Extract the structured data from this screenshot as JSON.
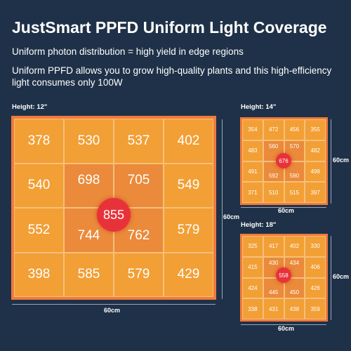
{
  "title": "JustSmart PPFD Uniform Light Coverage",
  "subtitle": "Uniform photon distribution = high yield in edge regions",
  "description": "Uniform PPFD allows you to grow high-quality plants and this high-efficiency light consumes only 100W",
  "colors": {
    "background": "#1f3148",
    "border": "#f07a3c",
    "cell": "#f29f35",
    "center_cell": "#ea8a3a",
    "hotspot": "#e8323a"
  },
  "maps": {
    "h12": {
      "height_label": "Height: 12\"",
      "width_label": "60cm",
      "depth_label": "60cm",
      "center_value": "855",
      "values": [
        "378",
        "530",
        "537",
        "402",
        "540",
        "698",
        "705",
        "549",
        "552",
        "744",
        "762",
        "579",
        "398",
        "585",
        "579",
        "429"
      ]
    },
    "h14": {
      "height_label": "Height: 14\"",
      "width_label": "60cm",
      "depth_label": "60cm",
      "center_value": "676",
      "values": [
        "354",
        "472",
        "456",
        "355",
        "483",
        "560",
        "570",
        "482",
        "491",
        "592",
        "590",
        "499",
        "371",
        "510",
        "515",
        "397"
      ]
    },
    "h18": {
      "height_label": "Height: 18\"",
      "width_label": "60cm",
      "depth_label": "60cm",
      "center_value": "558",
      "values": [
        "325",
        "417",
        "402",
        "330",
        "415",
        "430",
        "434",
        "406",
        "424",
        "445",
        "450",
        "426",
        "338",
        "431",
        "438",
        "359"
      ]
    }
  }
}
